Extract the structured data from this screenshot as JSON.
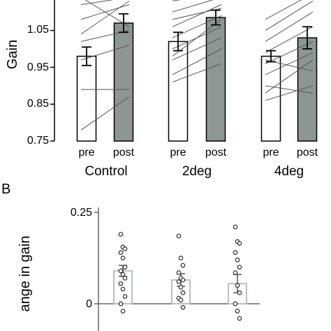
{
  "chart_data": [
    {
      "panel_label": "",
      "type": "bar",
      "ylabel": "Gain",
      "ylim": [
        0.75,
        1.15
      ],
      "yticks": [
        0.75,
        0.85,
        0.95,
        1.05
      ],
      "tick_labels": [
        "0.75",
        "0.85",
        "0.95",
        "1.05"
      ],
      "conditions": [
        {
          "name": "Control",
          "pre_label": "pre",
          "post_label": "post",
          "pre": {
            "mean": 0.98,
            "err": 0.025
          },
          "post": {
            "mean": 1.07,
            "err": 0.025
          },
          "subjects": [
            [
              0.78,
              0.87
            ],
            [
              0.89,
              0.89
            ],
            [
              0.97,
              1.01
            ],
            [
              1.02,
              1.05
            ],
            [
              1.08,
              1.12
            ],
            [
              1.12,
              1.14
            ],
            [
              1.14,
              1.06
            ],
            [
              1.04,
              1.13
            ]
          ]
        },
        {
          "name": "2deg",
          "pre_label": "pre",
          "post_label": "post",
          "pre": {
            "mean": 1.02,
            "err": 0.025
          },
          "post": {
            "mean": 1.085,
            "err": 0.02
          },
          "subjects": [
            [
              0.91,
              0.96
            ],
            [
              0.93,
              1.0
            ],
            [
              0.97,
              1.03
            ],
            [
              1.0,
              1.06
            ],
            [
              1.03,
              1.09
            ],
            [
              1.06,
              1.12
            ],
            [
              1.1,
              1.14
            ],
            [
              1.13,
              1.15
            ],
            [
              1.08,
              1.11
            ],
            [
              0.98,
              1.08
            ]
          ]
        },
        {
          "name": "4deg",
          "pre_label": "pre",
          "post_label": "post",
          "pre": {
            "mean": 0.98,
            "err": 0.015
          },
          "post": {
            "mean": 1.03,
            "err": 0.03
          },
          "subjects": [
            [
              0.88,
              0.97
            ],
            [
              0.9,
              0.88
            ],
            [
              0.93,
              0.99
            ],
            [
              0.96,
              1.02
            ],
            [
              0.99,
              1.06
            ],
            [
              1.02,
              1.1
            ],
            [
              1.05,
              1.13
            ],
            [
              1.08,
              1.15
            ],
            [
              0.86,
              0.9
            ],
            [
              0.97,
              0.94
            ]
          ]
        }
      ],
      "colors": {
        "pre_fill": "#ffffff",
        "post_fill": "#8c9692",
        "lines": "#555555",
        "axis": "#000000"
      }
    },
    {
      "panel_label": "B",
      "type": "bar",
      "ylabel": "ange in gain",
      "ylim": [
        -0.05,
        0.25
      ],
      "yticks": [
        0,
        0.25
      ],
      "tick_labels": [
        "0",
        "0.25"
      ],
      "groups": [
        {
          "mean": 0.09,
          "err": 0.015,
          "points": [
            0.19,
            0.155,
            0.15,
            0.14,
            0.125,
            0.1,
            0.09,
            0.08,
            0.07,
            0.055,
            0.04,
            0.02,
            0.0,
            -0.02
          ]
        },
        {
          "mean": 0.065,
          "err": 0.017,
          "points": [
            0.185,
            0.125,
            0.105,
            0.085,
            0.07,
            0.065,
            0.06,
            0.045,
            0.03,
            0.015,
            0.01,
            -0.01
          ]
        },
        {
          "mean": 0.055,
          "err": 0.025,
          "points": [
            0.21,
            0.17,
            0.165,
            0.14,
            0.12,
            0.1,
            0.085,
            0.05,
            0.03,
            0.0,
            -0.02,
            -0.04
          ]
        }
      ],
      "colors": {
        "bar_fill": "#ffffff",
        "bar_stroke": "#b8c0bb",
        "points": "#333333",
        "axis": "#666666"
      }
    }
  ]
}
